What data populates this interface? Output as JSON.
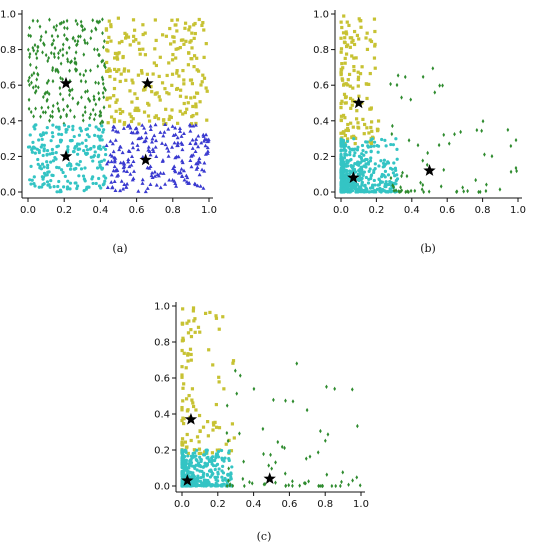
{
  "colors": {
    "dark_green": "#2e8b2e",
    "olive_yellow": "#c7c233",
    "cyan": "#34c4c4",
    "blue": "#3a3ad0",
    "star": "#000000"
  },
  "chart_data": [
    {
      "type": "scatter",
      "panel_label": "(a)",
      "xlim": [
        0,
        1.0
      ],
      "ylim": [
        0,
        1.0
      ],
      "x_ticks": [
        "0.0",
        "0.2",
        "0.4",
        "0.6",
        "0.8",
        "1.0"
      ],
      "y_ticks": [
        "0.0",
        "0.2",
        "0.4",
        "0.6",
        "0.8",
        "1.0"
      ],
      "grid": false,
      "series": [
        {
          "marker": "diamond",
          "color": "#2e8b2e",
          "distribution": "uniform",
          "x_range": [
            0.0,
            0.43
          ],
          "y_range": [
            0.38,
            0.97
          ],
          "count": 230
        },
        {
          "marker": "square",
          "color": "#c7c233",
          "distribution": "uniform",
          "x_range": [
            0.43,
            1.0
          ],
          "y_range": [
            0.38,
            0.98
          ],
          "count": 230
        },
        {
          "marker": "circle",
          "color": "#34c4c4",
          "distribution": "uniform",
          "x_range": [
            0.0,
            0.43
          ],
          "y_range": [
            0.0,
            0.38
          ],
          "count": 230
        },
        {
          "marker": "triangle",
          "color": "#3a3ad0",
          "distribution": "uniform",
          "x_range": [
            0.43,
            1.0
          ],
          "y_range": [
            0.0,
            0.38
          ],
          "count": 230
        }
      ],
      "centroids": [
        [
          0.21,
          0.61
        ],
        [
          0.66,
          0.61
        ],
        [
          0.21,
          0.2
        ],
        [
          0.65,
          0.18
        ]
      ]
    },
    {
      "type": "scatter",
      "panel_label": "(b)",
      "xlim": [
        0,
        1.0
      ],
      "ylim": [
        0,
        1.0
      ],
      "x_ticks": [
        "0.0",
        "0.2",
        "0.4",
        "0.6",
        "0.8",
        "1.0"
      ],
      "y_ticks": [
        "0.0",
        "0.2",
        "0.4",
        "0.6",
        "0.8",
        "1.0"
      ],
      "grid": false,
      "series": [
        {
          "marker": "square",
          "color": "#c7c233",
          "distribution": "skewed_y",
          "x_range": [
            0.0,
            0.22
          ],
          "y_range": [
            0.27,
            1.0
          ],
          "count": 150
        },
        {
          "marker": "circle",
          "color": "#34c4c4",
          "distribution": "corner",
          "x_range": [
            0.0,
            0.32
          ],
          "y_range": [
            0.0,
            0.3
          ],
          "count": 520
        },
        {
          "marker": "diamond",
          "color": "#2e8b2e",
          "distribution": "skewed_x",
          "x_range": [
            0.28,
            1.0
          ],
          "y_range": [
            0.0,
            0.7
          ],
          "count": 70
        }
      ],
      "centroids": [
        [
          0.1,
          0.5
        ],
        [
          0.07,
          0.08
        ],
        [
          0.5,
          0.12
        ]
      ]
    },
    {
      "type": "scatter",
      "panel_label": "(c)",
      "xlim": [
        0,
        1.0
      ],
      "ylim": [
        0,
        1.0
      ],
      "x_ticks": [
        "0.0",
        "0.2",
        "0.4",
        "0.6",
        "0.8",
        "1.0"
      ],
      "y_ticks": [
        "0.0",
        "0.2",
        "0.4",
        "0.6",
        "0.8",
        "1.0"
      ],
      "grid": false,
      "series": [
        {
          "marker": "square",
          "color": "#c7c233",
          "distribution": "skewed_y",
          "x_range": [
            0.0,
            0.3
          ],
          "y_range": [
            0.18,
            1.0
          ],
          "count": 110
        },
        {
          "marker": "circle",
          "color": "#34c4c4",
          "distribution": "corner",
          "x_range": [
            0.0,
            0.28
          ],
          "y_range": [
            0.0,
            0.2
          ],
          "count": 420
        },
        {
          "marker": "diamond",
          "color": "#2e8b2e",
          "distribution": "skewed_x",
          "x_range": [
            0.25,
            1.0
          ],
          "y_range": [
            0.0,
            0.73
          ],
          "count": 70
        }
      ],
      "centroids": [
        [
          0.05,
          0.37
        ],
        [
          0.03,
          0.03
        ],
        [
          0.49,
          0.04
        ]
      ]
    }
  ]
}
